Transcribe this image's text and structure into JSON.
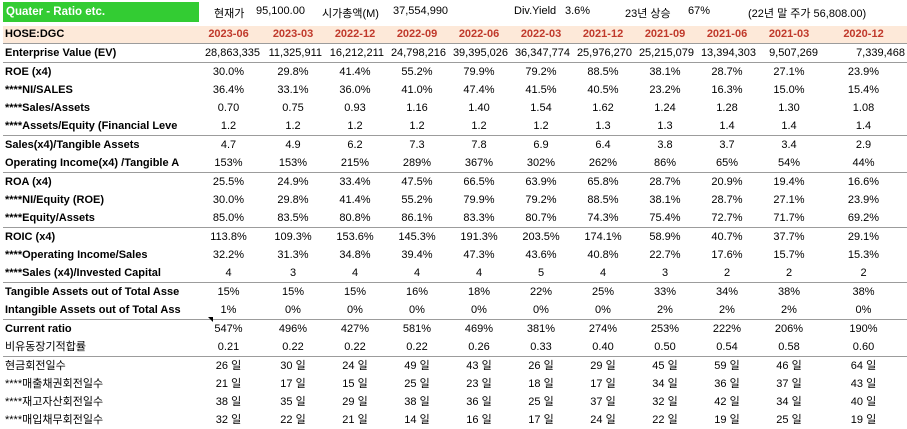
{
  "header": {
    "title": "Quater - Ratio etc.",
    "price_label": "현재가",
    "price_value": "95,100.00",
    "mcap_label": "시가총액(M)",
    "mcap_value": "37,554,990",
    "div_label": "Div.Yield",
    "div_value": "3.6%",
    "rise_label": "23년 상승",
    "rise_value": "67%",
    "year_end_text": "(22년 말 주가 56,808.00)"
  },
  "table": {
    "ticker": "HOSE:DGC",
    "columns": [
      "2023-06",
      "2023-03",
      "2022-12",
      "2022-09",
      "2022-06",
      "2022-03",
      "2021-12",
      "2021-09",
      "2021-06",
      "2021-03",
      "2020-12"
    ],
    "rows": [
      {
        "label": "Enterprise Value (EV)",
        "values": [
          "28,863,335",
          "11,325,911",
          "16,212,211",
          "24,798,216",
          "39,395,026",
          "36,347,774",
          "25,976,270",
          "25,215,079",
          "13,394,303",
          "9,507,269",
          "7,339,468"
        ],
        "bordered": true,
        "align": "right"
      },
      {
        "label": "ROE (x4)",
        "values": [
          "30.0%",
          "29.8%",
          "41.4%",
          "55.2%",
          "79.9%",
          "79.2%",
          "88.5%",
          "38.1%",
          "28.7%",
          "27.1%",
          "23.9%"
        ],
        "bordered": true,
        "align": "center"
      },
      {
        "label": "****NI/SALES",
        "values": [
          "36.4%",
          "33.1%",
          "36.0%",
          "41.0%",
          "47.4%",
          "41.5%",
          "40.5%",
          "23.2%",
          "16.3%",
          "15.0%",
          "15.4%"
        ],
        "align": "center"
      },
      {
        "label": "****Sales/Assets",
        "values": [
          "0.70",
          "0.75",
          "0.93",
          "1.16",
          "1.40",
          "1.54",
          "1.62",
          "1.24",
          "1.28",
          "1.30",
          "1.08"
        ],
        "align": "center"
      },
      {
        "label": "****Assets/Equity (Financial Leve",
        "values": [
          "1.2",
          "1.2",
          "1.2",
          "1.2",
          "1.2",
          "1.2",
          "1.3",
          "1.3",
          "1.4",
          "1.4",
          "1.4"
        ],
        "align": "center"
      },
      {
        "label": "Sales(x4)/Tangible Assets",
        "values": [
          "4.7",
          "4.9",
          "6.2",
          "7.3",
          "7.8",
          "6.9",
          "6.4",
          "3.8",
          "3.7",
          "3.4",
          "2.9"
        ],
        "bordered": true,
        "align": "center"
      },
      {
        "label": "Operating Income(x4) /Tangible A",
        "values": [
          "153%",
          "153%",
          "215%",
          "289%",
          "367%",
          "302%",
          "262%",
          "86%",
          "65%",
          "54%",
          "44%"
        ],
        "align": "center"
      },
      {
        "label": "ROA (x4)",
        "values": [
          "25.5%",
          "24.9%",
          "33.4%",
          "47.5%",
          "66.5%",
          "63.9%",
          "65.8%",
          "28.7%",
          "20.9%",
          "19.4%",
          "16.6%"
        ],
        "bordered": true,
        "align": "center"
      },
      {
        "label": "****NI/Equity (ROE)",
        "values": [
          "30.0%",
          "29.8%",
          "41.4%",
          "55.2%",
          "79.9%",
          "79.2%",
          "88.5%",
          "38.1%",
          "28.7%",
          "27.1%",
          "23.9%"
        ],
        "align": "center"
      },
      {
        "label": "****Equity/Assets",
        "values": [
          "85.0%",
          "83.5%",
          "80.8%",
          "86.1%",
          "83.3%",
          "80.7%",
          "74.3%",
          "75.4%",
          "72.7%",
          "71.7%",
          "69.2%"
        ],
        "align": "center"
      },
      {
        "label": "ROIC (x4)",
        "values": [
          "113.8%",
          "109.3%",
          "153.6%",
          "145.3%",
          "191.3%",
          "203.5%",
          "174.1%",
          "58.9%",
          "40.7%",
          "37.7%",
          "29.1%"
        ],
        "bordered": true,
        "align": "center"
      },
      {
        "label": "****Operating Income/Sales",
        "values": [
          "32.2%",
          "31.3%",
          "34.8%",
          "39.4%",
          "47.3%",
          "43.6%",
          "40.8%",
          "22.7%",
          "17.6%",
          "15.7%",
          "15.3%"
        ],
        "align": "center"
      },
      {
        "label": "****Sales (x4)/Invested Capital",
        "values": [
          "4",
          "3",
          "4",
          "4",
          "4",
          "5",
          "4",
          "3",
          "2",
          "2",
          "2"
        ],
        "align": "center"
      },
      {
        "label": "Tangible Assets out of Total Asse",
        "values": [
          "15%",
          "15%",
          "15%",
          "16%",
          "18%",
          "22%",
          "25%",
          "33%",
          "34%",
          "38%",
          "38%"
        ],
        "bordered": true,
        "align": "center"
      },
      {
        "label": "Intangible Assets out of Total Ass",
        "values": [
          "1%",
          "0%",
          "0%",
          "0%",
          "0%",
          "0%",
          "0%",
          "2%",
          "2%",
          "2%",
          "0%"
        ],
        "align": "center"
      },
      {
        "label": "Current ratio",
        "values": [
          "547%",
          "496%",
          "427%",
          "581%",
          "469%",
          "381%",
          "274%",
          "253%",
          "222%",
          "206%",
          "190%"
        ],
        "bordered": true,
        "align": "center"
      },
      {
        "label": "비유동장기적합률",
        "values": [
          "0.21",
          "0.22",
          "0.22",
          "0.22",
          "0.26",
          "0.33",
          "0.40",
          "0.50",
          "0.54",
          "0.58",
          "0.60"
        ],
        "kr": true,
        "align": "center"
      },
      {
        "label": "현금회전일수",
        "values": [
          "26 일",
          "30 일",
          "24 일",
          "49 일",
          "43 일",
          "26 일",
          "29 일",
          "45 일",
          "59 일",
          "46 일",
          "64 일"
        ],
        "bordered": true,
        "kr": true,
        "align": "center"
      },
      {
        "label": "****매출채권회전일수",
        "values": [
          "21 일",
          "17 일",
          "15 일",
          "25 일",
          "23 일",
          "18 일",
          "17 일",
          "34 일",
          "36 일",
          "37 일",
          "43 일"
        ],
        "kr": true,
        "align": "center"
      },
      {
        "label": "****재고자산회전일수",
        "values": [
          "38 일",
          "35 일",
          "29 일",
          "38 일",
          "36 일",
          "25 일",
          "37 일",
          "32 일",
          "42 일",
          "34 일",
          "40 일"
        ],
        "kr": true,
        "align": "center"
      },
      {
        "label": "****매입채무회전일수",
        "values": [
          "32 일",
          "22 일",
          "21 일",
          "14 일",
          "16 일",
          "17 일",
          "24 일",
          "22 일",
          "19 일",
          "25 일",
          "19 일"
        ],
        "kr": true,
        "align": "center"
      }
    ]
  }
}
